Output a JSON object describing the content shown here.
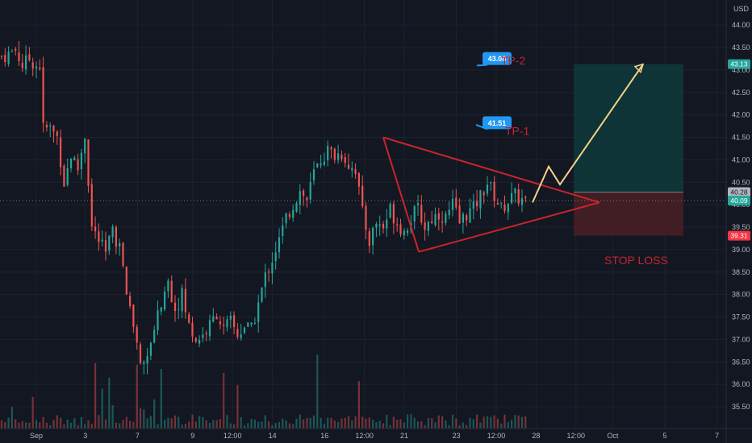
{
  "chart_data": {
    "type": "candlestick",
    "currency": "USD",
    "ylim": [
      35.1,
      44.35
    ],
    "y_ticks": [
      "35.50",
      "36.00",
      "36.50",
      "37.00",
      "37.50",
      "38.00",
      "38.50",
      "39.00",
      "39.50",
      "40.00",
      "40.50",
      "41.00",
      "41.50",
      "42.00",
      "42.50",
      "43.00",
      "43.50",
      "44.00"
    ],
    "x_ticks": [
      {
        "label": "Sep",
        "x": 0
      },
      {
        "label": "3",
        "x": 16
      },
      {
        "label": "7",
        "x": 33
      },
      {
        "label": "9",
        "x": 51
      },
      {
        "label": "12:00",
        "x": 64
      },
      {
        "label": "14",
        "x": 77
      },
      {
        "label": "16",
        "x": 94
      },
      {
        "label": "12:00",
        "x": 107
      },
      {
        "label": "21",
        "x": 120
      },
      {
        "label": "23",
        "x": 137
      },
      {
        "label": "12:00",
        "x": 150
      },
      {
        "label": "28",
        "x": 163
      },
      {
        "label": "12:00",
        "x": 176
      },
      {
        "label": "Oct",
        "x": 188
      },
      {
        "label": "5",
        "x": 205
      },
      {
        "label": "7",
        "x": 222
      }
    ],
    "price_path": [
      [
        0,
        43.3
      ],
      [
        2,
        43.35
      ],
      [
        4,
        43.45
      ],
      [
        6,
        43.1
      ],
      [
        8,
        43.25
      ],
      [
        10,
        43.1
      ],
      [
        11,
        43.1
      ],
      [
        12,
        41.7
      ],
      [
        14,
        41.7
      ],
      [
        16,
        41.5
      ],
      [
        18,
        40.5
      ],
      [
        20,
        41.1
      ],
      [
        22,
        40.8
      ],
      [
        24,
        41.55
      ],
      [
        26,
        39.5
      ],
      [
        28,
        39.2
      ],
      [
        30,
        38.9
      ],
      [
        32,
        39.45
      ],
      [
        34,
        39.0
      ],
      [
        36,
        38.0
      ],
      [
        38,
        37.2
      ],
      [
        40,
        36.5
      ],
      [
        42,
        36.6
      ],
      [
        44,
        37.2
      ],
      [
        46,
        37.8
      ],
      [
        48,
        38.3
      ],
      [
        50,
        37.7
      ],
      [
        52,
        38.0
      ],
      [
        54,
        37.3
      ],
      [
        56,
        37.0
      ],
      [
        58,
        37.1
      ],
      [
        60,
        37.3
      ],
      [
        62,
        37.6
      ],
      [
        64,
        37.2
      ],
      [
        66,
        37.4
      ],
      [
        68,
        37.1
      ],
      [
        70,
        37.3
      ],
      [
        72,
        37.2
      ],
      [
        74,
        37.8
      ],
      [
        76,
        38.4
      ],
      [
        78,
        38.8
      ],
      [
        80,
        39.2
      ],
      [
        82,
        39.7
      ],
      [
        84,
        40.0
      ],
      [
        86,
        40.3
      ],
      [
        88,
        40.1
      ],
      [
        90,
        40.7
      ],
      [
        92,
        41.0
      ],
      [
        94,
        41.2
      ],
      [
        96,
        41.1
      ],
      [
        98,
        41.15
      ],
      [
        100,
        40.9
      ],
      [
        102,
        40.8
      ],
      [
        104,
        39.8
      ],
      [
        106,
        39.2
      ],
      [
        108,
        39.6
      ],
      [
        110,
        39.5
      ],
      [
        112,
        39.9
      ],
      [
        114,
        39.6
      ],
      [
        116,
        39.4
      ],
      [
        118,
        39.7
      ],
      [
        120,
        39.9
      ],
      [
        122,
        39.5
      ],
      [
        124,
        39.7
      ],
      [
        126,
        39.8
      ],
      [
        128,
        39.7
      ],
      [
        130,
        40.0
      ],
      [
        132,
        39.6
      ],
      [
        134,
        39.8
      ],
      [
        136,
        39.9
      ],
      [
        138,
        40.2
      ],
      [
        140,
        40.5
      ],
      [
        142,
        40.2
      ],
      [
        144,
        39.9
      ],
      [
        146,
        40.1
      ],
      [
        148,
        40.2
      ],
      [
        150,
        40.1
      ],
      [
        151,
        40.05
      ]
    ],
    "current_price": "40.09",
    "pattern": "symmetrical-triangle",
    "projection_path": [
      [
        40.05
      ],
      [
        40.85
      ],
      [
        40.45
      ],
      [
        43.13
      ]
    ],
    "targets": [
      {
        "name": "TP-1",
        "value": "41.51"
      },
      {
        "name": "TP-2",
        "value": "43.08"
      }
    ],
    "axis_tags": [
      {
        "value": "43.13",
        "color": "#26a69a"
      },
      {
        "value": "40.28",
        "color": "#b2b5be"
      },
      {
        "value": "40.09",
        "color": "#26a69a"
      },
      {
        "value": "39.31",
        "color": "#f23645"
      }
    ],
    "position": {
      "entry": 40.28,
      "target": 43.13,
      "stop": 39.31
    },
    "stop_label": "STOP LOSS",
    "colors": {
      "background": "#131722",
      "up": "#26a69a",
      "down": "#ef5350",
      "pattern_line": "#c8242d",
      "projection": "#f7d08a",
      "callout": "#2196f3",
      "profit_zone": "#0e3a3b",
      "loss_zone": "#4a1f24"
    }
  },
  "axis": {
    "currency_label": "USD"
  }
}
